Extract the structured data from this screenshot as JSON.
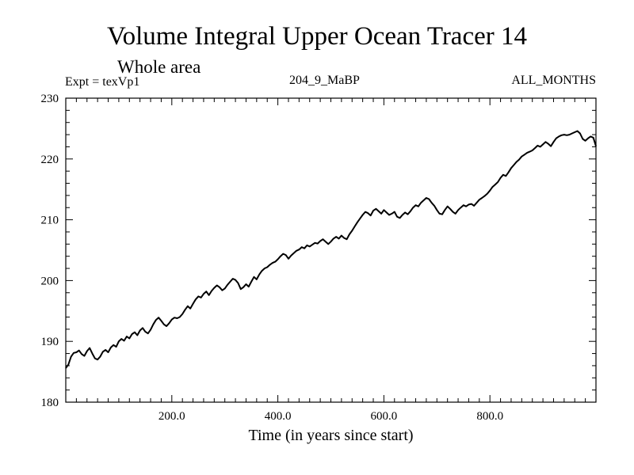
{
  "header": {
    "title": "Volume Integral Upper Ocean Tracer 14",
    "subtitle": "Whole area",
    "experiment": "Expt = texVp1",
    "run_id": "204_9_MaBP",
    "period": "ALL_MONTHS"
  },
  "chart_data": {
    "type": "line",
    "title": "Volume Integral Upper Ocean Tracer 14",
    "xlabel": "Time (in years since start)",
    "ylabel": "",
    "xlim": [
      0,
      1000
    ],
    "ylim": [
      180,
      230
    ],
    "xticks": [
      200,
      400,
      600,
      800
    ],
    "xtick_labels": [
      "200.0",
      "400.0",
      "600.0",
      "800.0"
    ],
    "yticks": [
      180,
      190,
      200,
      210,
      220,
      230
    ],
    "ytick_labels": [
      "180",
      "190",
      "200",
      "210",
      "220",
      "230"
    ],
    "grid": false,
    "series": [
      {
        "name": "Tracer 14",
        "x": [
          0,
          5,
          10,
          15,
          20,
          25,
          30,
          35,
          40,
          45,
          50,
          55,
          60,
          65,
          70,
          75,
          80,
          85,
          90,
          95,
          100,
          105,
          110,
          115,
          120,
          125,
          130,
          135,
          140,
          145,
          150,
          155,
          160,
          165,
          170,
          175,
          180,
          185,
          190,
          195,
          200,
          205,
          210,
          215,
          220,
          225,
          230,
          235,
          240,
          245,
          250,
          255,
          260,
          265,
          270,
          275,
          280,
          285,
          290,
          295,
          300,
          305,
          310,
          315,
          320,
          325,
          330,
          335,
          340,
          345,
          350,
          355,
          360,
          365,
          370,
          375,
          380,
          385,
          390,
          395,
          400,
          405,
          410,
          415,
          420,
          425,
          430,
          435,
          440,
          445,
          450,
          455,
          460,
          465,
          470,
          475,
          480,
          485,
          490,
          495,
          500,
          505,
          510,
          515,
          520,
          525,
          530,
          535,
          540,
          545,
          550,
          555,
          560,
          565,
          570,
          575,
          580,
          585,
          590,
          595,
          600,
          605,
          610,
          615,
          620,
          625,
          630,
          635,
          640,
          645,
          650,
          655,
          660,
          665,
          670,
          675,
          680,
          685,
          690,
          695,
          700,
          705,
          710,
          715,
          720,
          725,
          730,
          735,
          740,
          745,
          750,
          755,
          760,
          765,
          770,
          775,
          780,
          785,
          790,
          795,
          800,
          805,
          810,
          815,
          820,
          825,
          830,
          835,
          840,
          845,
          850,
          855,
          860,
          865,
          870,
          875,
          880,
          885,
          890,
          895,
          900,
          905,
          910,
          915,
          920,
          925,
          930,
          935,
          940,
          945,
          950,
          955,
          960,
          965,
          970,
          975,
          980,
          985,
          990,
          995,
          1000
        ],
        "y": [
          185.6,
          186.2,
          187.5,
          188.1,
          188.2,
          188.5,
          187.9,
          187.6,
          188.4,
          188.9,
          188.0,
          187.2,
          187.0,
          187.5,
          188.3,
          188.6,
          188.2,
          189.0,
          189.4,
          189.1,
          190.0,
          190.4,
          190.1,
          190.8,
          190.5,
          191.2,
          191.5,
          191.0,
          191.8,
          192.2,
          191.6,
          191.3,
          191.9,
          192.8,
          193.5,
          193.9,
          193.4,
          192.8,
          192.5,
          193.0,
          193.6,
          193.9,
          193.8,
          194.0,
          194.5,
          195.2,
          195.8,
          195.4,
          196.2,
          196.9,
          197.4,
          197.2,
          197.8,
          198.2,
          197.6,
          198.3,
          198.8,
          199.2,
          198.9,
          198.4,
          198.7,
          199.3,
          199.8,
          200.3,
          200.1,
          199.6,
          198.6,
          198.9,
          199.4,
          199.0,
          199.8,
          200.6,
          200.2,
          201.0,
          201.6,
          202.0,
          202.2,
          202.6,
          202.9,
          203.1,
          203.5,
          204.0,
          204.4,
          204.2,
          203.6,
          204.1,
          204.5,
          204.9,
          205.1,
          205.5,
          205.3,
          205.8,
          205.6,
          205.9,
          206.2,
          206.1,
          206.5,
          206.8,
          206.4,
          206.0,
          206.4,
          206.9,
          207.2,
          206.9,
          207.4,
          207.0,
          206.8,
          207.6,
          208.2,
          208.9,
          209.6,
          210.2,
          210.8,
          211.3,
          211.1,
          210.7,
          211.5,
          211.8,
          211.4,
          211.0,
          211.6,
          211.2,
          210.8,
          211.0,
          211.3,
          210.5,
          210.3,
          210.8,
          211.2,
          210.9,
          211.4,
          212.0,
          212.4,
          212.2,
          212.8,
          213.2,
          213.6,
          213.4,
          212.8,
          212.3,
          211.6,
          211.0,
          210.9,
          211.6,
          212.2,
          211.8,
          211.3,
          211.0,
          211.6,
          212.0,
          212.4,
          212.2,
          212.5,
          212.6,
          212.3,
          212.8,
          213.3,
          213.6,
          213.9,
          214.3,
          214.8,
          215.4,
          215.8,
          216.2,
          216.9,
          217.4,
          217.2,
          217.8,
          218.5,
          219.0,
          219.5,
          219.9,
          220.4,
          220.7,
          221.0,
          221.2,
          221.4,
          221.8,
          222.2,
          222.0,
          222.4,
          222.8,
          222.5,
          222.1,
          222.8,
          223.4,
          223.7,
          223.9,
          224.0,
          223.9,
          224.0,
          224.2,
          224.4,
          224.6,
          224.2,
          223.3,
          223.0,
          223.4,
          223.7,
          223.5,
          222.1
        ]
      }
    ]
  }
}
